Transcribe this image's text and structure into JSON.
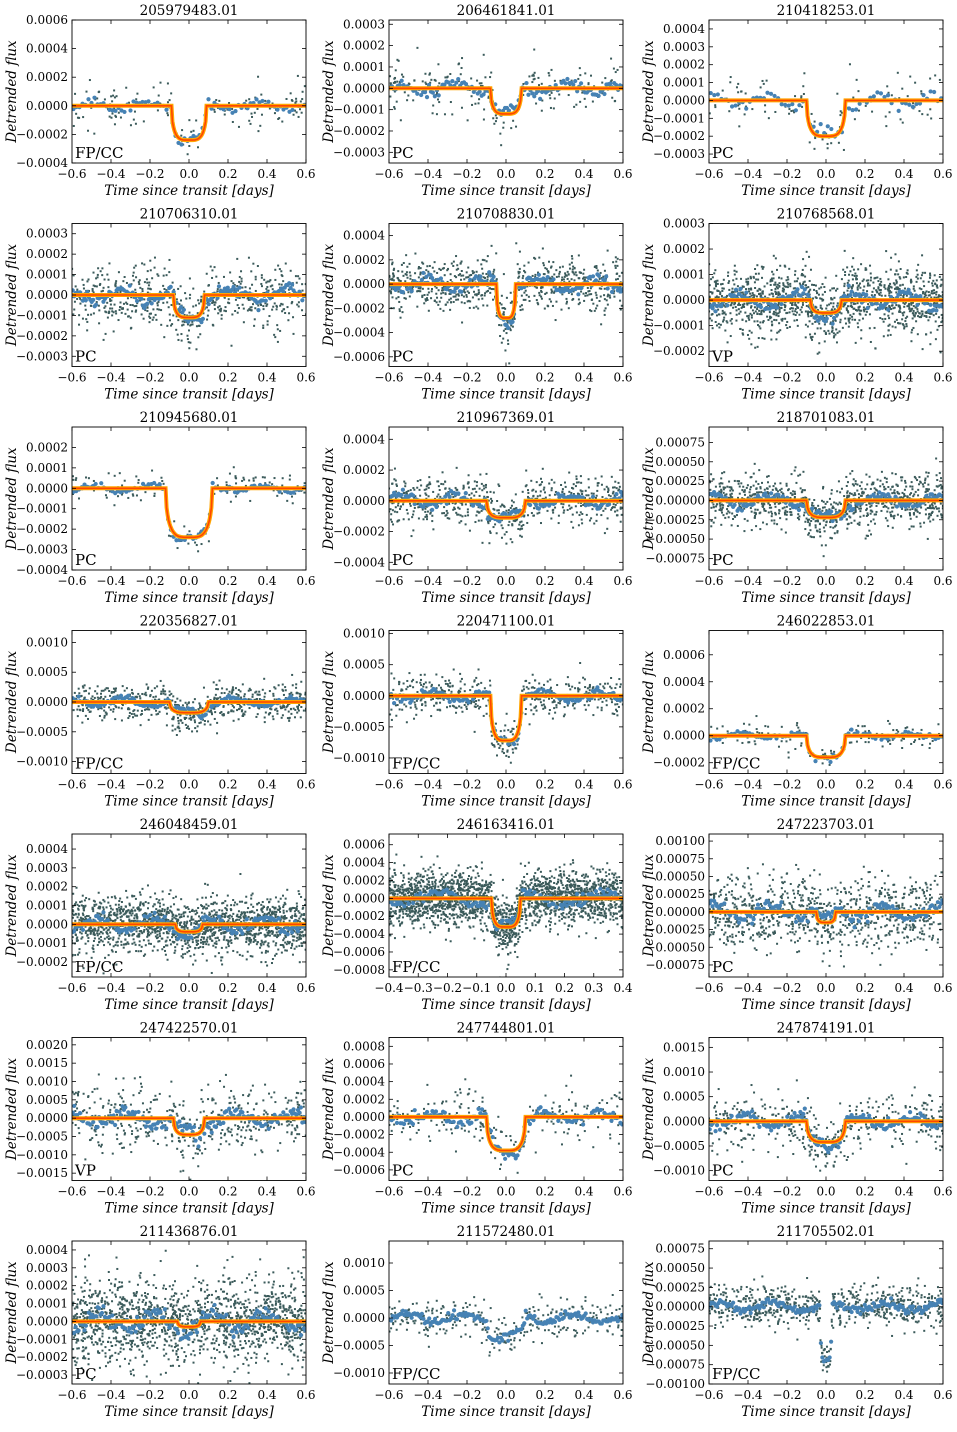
{
  "colors": {
    "data_points": "#4682b4",
    "raw_points": "#3a5a5a",
    "model_outer": "#ffa500",
    "model_inner": "#ff4500",
    "PC": "#4169e1",
    "VP": "#2e8b57",
    "FP/CC": "#ff4500"
  },
  "chart_data": [
    {
      "type": "scatter",
      "title": "205979483.01",
      "xlabel": "Time since transit [days]",
      "ylabel": "Detrended flux",
      "xlim": [
        -0.6,
        0.6
      ],
      "ylim": [
        -0.0004,
        0.0006
      ],
      "xticks": [
        "−0.6",
        "−0.4",
        "−0.2",
        "0.0",
        "0.2",
        "0.4",
        "0.6"
      ],
      "yticks": [
        "−0.0004",
        "−0.0002",
        "0.0000",
        "0.0002",
        "0.0004",
        "0.0006"
      ],
      "class": "FP/CC",
      "depth": 0.00024,
      "half_width": 0.09,
      "noise": 6e-05,
      "npts": 130,
      "model": true
    },
    {
      "type": "scatter",
      "title": "206461841.01",
      "xlabel": "Time since transit [days]",
      "ylabel": "Detrended flux",
      "xlim": [
        -0.6,
        0.6
      ],
      "ylim": [
        -0.00035,
        0.00032
      ],
      "xticks": [
        "−0.6",
        "−0.4",
        "−0.2",
        "0.0",
        "0.2",
        "0.4",
        "0.6"
      ],
      "yticks": [
        "−0.0003",
        "−0.0002",
        "−0.0001",
        "0.0000",
        "0.0001",
        "0.0002",
        "0.0003"
      ],
      "class": "PC",
      "depth": 0.00012,
      "half_width": 0.08,
      "noise": 5e-05,
      "npts": 200,
      "model": true
    },
    {
      "type": "scatter",
      "title": "210418253.01",
      "xlabel": "Time since transit [days]",
      "ylabel": "Detrended flux",
      "xlim": [
        -0.6,
        0.6
      ],
      "ylim": [
        -0.00035,
        0.00045
      ],
      "xticks": [
        "−0.6",
        "−0.4",
        "−0.2",
        "0.0",
        "0.2",
        "0.4",
        "0.6"
      ],
      "yticks": [
        "−0.0003",
        "−0.0002",
        "−0.0001",
        "0.0000",
        "0.0001",
        "0.0002",
        "0.0003",
        "0.0004"
      ],
      "class": "PC",
      "depth": 0.0002,
      "half_width": 0.1,
      "noise": 6e-05,
      "npts": 110,
      "model": true
    },
    {
      "type": "scatter",
      "title": "210706310.01",
      "xlabel": "Time since transit [days]",
      "ylabel": "Detrended flux",
      "xlim": [
        -0.6,
        0.6
      ],
      "ylim": [
        -0.00035,
        0.00035
      ],
      "xticks": [
        "−0.6",
        "−0.4",
        "−0.2",
        "0.0",
        "0.2",
        "0.4",
        "0.6"
      ],
      "yticks": [
        "−0.0003",
        "−0.0002",
        "−0.0001",
        "0.0000",
        "0.0001",
        "0.0002",
        "0.0003"
      ],
      "class": "PC",
      "depth": 0.00011,
      "half_width": 0.08,
      "noise": 6e-05,
      "npts": 550,
      "model": true
    },
    {
      "type": "scatter",
      "title": "210708830.01",
      "xlabel": "Time since transit [days]",
      "ylabel": "Detrended flux",
      "xlim": [
        -0.6,
        0.6
      ],
      "ylim": [
        -0.00068,
        0.0005
      ],
      "xticks": [
        "−0.6",
        "−0.4",
        "−0.2",
        "0.0",
        "0.2",
        "0.4",
        "0.6"
      ],
      "yticks": [
        "−0.0006",
        "−0.0004",
        "−0.0002",
        "0.0000",
        "0.0002",
        "0.0004"
      ],
      "class": "PC",
      "depth": 0.00028,
      "half_width": 0.05,
      "noise": 9e-05,
      "npts": 700,
      "model": true
    },
    {
      "type": "scatter",
      "title": "210768568.01",
      "xlabel": "Time since transit [days]",
      "ylabel": "Detrended flux",
      "xlim": [
        -0.6,
        0.6
      ],
      "ylim": [
        -0.00026,
        0.0003
      ],
      "xticks": [
        "−0.6",
        "−0.4",
        "−0.2",
        "0.0",
        "0.2",
        "0.4",
        "0.6"
      ],
      "yticks": [
        "−0.0002",
        "−0.0001",
        "0.0000",
        "0.0001",
        "0.0002",
        "0.0003"
      ],
      "class": "VP",
      "depth": 5e-05,
      "half_width": 0.08,
      "noise": 5e-05,
      "npts": 1200,
      "model": true
    },
    {
      "type": "scatter",
      "title": "210945680.01",
      "xlabel": "Time since transit [days]",
      "ylabel": "Detrended flux",
      "xlim": [
        -0.6,
        0.6
      ],
      "ylim": [
        -0.0004,
        0.0003
      ],
      "xticks": [
        "−0.6",
        "−0.4",
        "−0.2",
        "0.0",
        "0.2",
        "0.4",
        "0.6"
      ],
      "yticks": [
        "−0.0004",
        "−0.0003",
        "−0.0002",
        "−0.0001",
        "0.0000",
        "0.0001",
        "0.0002"
      ],
      "class": "PC",
      "depth": 0.00024,
      "half_width": 0.12,
      "noise": 3e-05,
      "npts": 140,
      "model": true
    },
    {
      "type": "scatter",
      "title": "210967369.01",
      "xlabel": "Time since transit [days]",
      "ylabel": "Detrended flux",
      "xlim": [
        -0.6,
        0.6
      ],
      "ylim": [
        -0.00045,
        0.00048
      ],
      "xticks": [
        "−0.6",
        "−0.4",
        "−0.2",
        "0.0",
        "0.2",
        "0.4",
        "0.6"
      ],
      "yticks": [
        "−0.0004",
        "−0.0002",
        "0.0000",
        "0.0002",
        "0.0004"
      ],
      "class": "PC",
      "depth": 0.00011,
      "half_width": 0.1,
      "noise": 6e-05,
      "npts": 600,
      "model": true
    },
    {
      "type": "scatter",
      "title": "218701083.01",
      "xlabel": "Time since transit [days]",
      "ylabel": "Detrended flux",
      "xlim": [
        -0.6,
        0.6
      ],
      "ylim": [
        -0.0009,
        0.00095
      ],
      "xticks": [
        "−0.6",
        "−0.4",
        "−0.2",
        "0.0",
        "0.2",
        "0.4",
        "0.6"
      ],
      "yticks": [
        "−0.00075",
        "−0.00050",
        "−0.00025",
        "0.00000",
        "0.00025",
        "0.00050",
        "0.00075"
      ],
      "class": "PC",
      "depth": 0.00022,
      "half_width": 0.1,
      "noise": 0.00013,
      "npts": 900,
      "model": true
    },
    {
      "type": "scatter",
      "title": "220356827.01",
      "xlabel": "Time since transit [days]",
      "ylabel": "Detrended flux",
      "xlim": [
        -0.6,
        0.6
      ],
      "ylim": [
        -0.0012,
        0.0012
      ],
      "xticks": [
        "−0.6",
        "−0.4",
        "−0.2",
        "0.0",
        "0.2",
        "0.4",
        "0.6"
      ],
      "yticks": [
        "−0.0010",
        "−0.0005",
        "0.0000",
        "0.0005",
        "0.0010"
      ],
      "class": "FP/CC",
      "depth": 0.00018,
      "half_width": 0.1,
      "noise": 0.00012,
      "npts": 600,
      "model": true
    },
    {
      "type": "scatter",
      "title": "220471100.01",
      "xlabel": "Time since transit [days]",
      "ylabel": "Detrended flux",
      "xlim": [
        -0.6,
        0.6
      ],
      "ylim": [
        -0.00125,
        0.00105
      ],
      "xticks": [
        "−0.6",
        "−0.4",
        "−0.2",
        "0.0",
        "0.2",
        "0.4",
        "0.6"
      ],
      "yticks": [
        "−0.0010",
        "−0.0005",
        "0.0000",
        "0.0005",
        "0.0010"
      ],
      "class": "FP/CC",
      "depth": 0.00072,
      "half_width": 0.08,
      "noise": 0.00012,
      "npts": 450,
      "model": true
    },
    {
      "type": "scatter",
      "title": "246022853.01",
      "xlabel": "Time since transit [days]",
      "ylabel": "Detrended flux",
      "xlim": [
        -0.6,
        0.6
      ],
      "ylim": [
        -0.00028,
        0.00078
      ],
      "xticks": [
        "−0.6",
        "−0.4",
        "−0.2",
        "0.0",
        "0.2",
        "0.4",
        "0.6"
      ],
      "yticks": [
        "−0.0002",
        "0.0000",
        "0.0002",
        "0.0004",
        "0.0006"
      ],
      "class": "FP/CC",
      "depth": 0.00016,
      "half_width": 0.1,
      "noise": 4e-05,
      "npts": 130,
      "model": true
    },
    {
      "type": "scatter",
      "title": "246048459.01",
      "xlabel": "Time since transit [days]",
      "ylabel": "Detrended flux",
      "xlim": [
        -0.6,
        0.6
      ],
      "ylim": [
        -0.00028,
        0.00048
      ],
      "xticks": [
        "−0.6",
        "−0.4",
        "−0.2",
        "0.0",
        "0.2",
        "0.4",
        "0.6"
      ],
      "yticks": [
        "−0.0002",
        "−0.0001",
        "0.0000",
        "0.0001",
        "0.0002",
        "0.0003",
        "0.0004"
      ],
      "class": "FP/CC",
      "depth": 4e-05,
      "half_width": 0.07,
      "noise": 6e-05,
      "npts": 1600,
      "model": true
    },
    {
      "type": "scatter",
      "title": "246163416.01",
      "xlabel": "Time since transit [days]",
      "ylabel": "Detrended flux",
      "xlim": [
        -0.4,
        0.4
      ],
      "ylim": [
        -0.00088,
        0.00072
      ],
      "xticks": [
        "−0.4",
        "−0.3",
        "−0.2",
        "−0.1",
        "0.0",
        "0.1",
        "0.2",
        "0.3",
        "0.4"
      ],
      "yticks": [
        "−0.0008",
        "−0.0006",
        "−0.0004",
        "−0.0002",
        "0.0000",
        "0.0002",
        "0.0004",
        "0.0006"
      ],
      "class": "FP/CC",
      "depth": 0.00032,
      "half_width": 0.05,
      "noise": 0.00012,
      "npts": 2200,
      "model": true
    },
    {
      "type": "scatter",
      "title": "247223703.01",
      "xlabel": "Time since transit [days]",
      "ylabel": "Detrended flux",
      "xlim": [
        -0.6,
        0.6
      ],
      "ylim": [
        -0.00092,
        0.0011
      ],
      "xticks": [
        "−0.6",
        "−0.4",
        "−0.2",
        "0.0",
        "0.2",
        "0.4",
        "0.6"
      ],
      "yticks": [
        "−0.00075",
        "−0.00050",
        "−0.00025",
        "0.00000",
        "0.00025",
        "0.00050",
        "0.00075",
        "0.00100"
      ],
      "class": "PC",
      "depth": 0.00015,
      "half_width": 0.05,
      "noise": 0.0002,
      "npts": 900,
      "model": true
    },
    {
      "type": "scatter",
      "title": "247422570.01",
      "xlabel": "Time since transit [days]",
      "ylabel": "Detrended flux",
      "xlim": [
        -0.6,
        0.6
      ],
      "ylim": [
        -0.0017,
        0.0022
      ],
      "xticks": [
        "−0.6",
        "−0.4",
        "−0.2",
        "0.0",
        "0.2",
        "0.4",
        "0.6"
      ],
      "yticks": [
        "−0.0015",
        "−0.0010",
        "−0.0005",
        "0.0000",
        "0.0005",
        "0.0010",
        "0.0015",
        "0.0020"
      ],
      "class": "VP",
      "depth": 0.00045,
      "half_width": 0.08,
      "noise": 0.00035,
      "npts": 450,
      "model": true
    },
    {
      "type": "scatter",
      "title": "247744801.01",
      "xlabel": "Time since transit [days]",
      "ylabel": "Detrended flux",
      "xlim": [
        -0.6,
        0.6
      ],
      "ylim": [
        -0.00072,
        0.0009
      ],
      "xticks": [
        "−0.6",
        "−0.4",
        "−0.2",
        "0.0",
        "0.2",
        "0.4",
        "0.6"
      ],
      "yticks": [
        "−0.0006",
        "−0.0004",
        "−0.0002",
        "0.0000",
        "0.0002",
        "0.0004",
        "0.0006",
        "0.0008"
      ],
      "class": "PC",
      "depth": 0.00038,
      "half_width": 0.1,
      "noise": 0.00012,
      "npts": 220,
      "model": true
    },
    {
      "type": "scatter",
      "title": "247874191.01",
      "xlabel": "Time since transit [days]",
      "ylabel": "Detrended flux",
      "xlim": [
        -0.6,
        0.6
      ],
      "ylim": [
        -0.0012,
        0.0017
      ],
      "xticks": [
        "−0.6",
        "−0.4",
        "−0.2",
        "0.0",
        "0.2",
        "0.4",
        "0.6"
      ],
      "yticks": [
        "−0.0010",
        "−0.0005",
        "0.0000",
        "0.0005",
        "0.0010",
        "0.0015"
      ],
      "class": "PC",
      "depth": 0.00042,
      "half_width": 0.1,
      "noise": 0.00022,
      "npts": 400,
      "model": true
    },
    {
      "type": "scatter",
      "title": "211436876.01",
      "xlabel": "Time since transit [days]",
      "ylabel": "Detrended flux",
      "xlim": [
        -0.6,
        0.6
      ],
      "ylim": [
        -0.00035,
        0.00045
      ],
      "xticks": [
        "−0.6",
        "−0.4",
        "−0.2",
        "0.0",
        "0.2",
        "0.4",
        "0.6"
      ],
      "yticks": [
        "−0.0003",
        "−0.0002",
        "−0.0001",
        "0.0000",
        "0.0001",
        "0.0002",
        "0.0003",
        "0.0004"
      ],
      "class": "PC",
      "depth": 3e-05,
      "half_width": 0.06,
      "noise": 9e-05,
      "npts": 1500,
      "model": true
    },
    {
      "type": "scatter",
      "title": "211572480.01",
      "xlabel": "Time since transit [days]",
      "ylabel": "Detrended flux",
      "xlim": [
        -0.6,
        0.6
      ],
      "ylim": [
        -0.0012,
        0.0014
      ],
      "xticks": [
        "−0.6",
        "−0.4",
        "−0.2",
        "0.0",
        "0.2",
        "0.4",
        "0.6"
      ],
      "yticks": [
        "−0.0010",
        "−0.0005",
        "0.0000",
        "0.0005",
        "0.0010"
      ],
      "class": "FP/CC",
      "depth": 0.00035,
      "half_width": 0.1,
      "noise": 0.00015,
      "npts": 300,
      "model": false
    },
    {
      "type": "scatter",
      "title": "211705502.01",
      "xlabel": "Time since transit [days]",
      "ylabel": "Detrended flux",
      "xlim": [
        -0.6,
        0.6
      ],
      "ylim": [
        -0.001,
        0.00085
      ],
      "xticks": [
        "−0.6",
        "−0.4",
        "−0.2",
        "0.0",
        "0.2",
        "0.4",
        "0.6"
      ],
      "yticks": [
        "−0.00100",
        "−0.00075",
        "−0.00050",
        "−0.00025",
        "0.00000",
        "0.00025",
        "0.00050",
        "0.00075"
      ],
      "class": "FP/CC",
      "depth": 0.00075,
      "half_width": 0.03,
      "noise": 0.0001,
      "npts": 700,
      "model": false
    }
  ]
}
